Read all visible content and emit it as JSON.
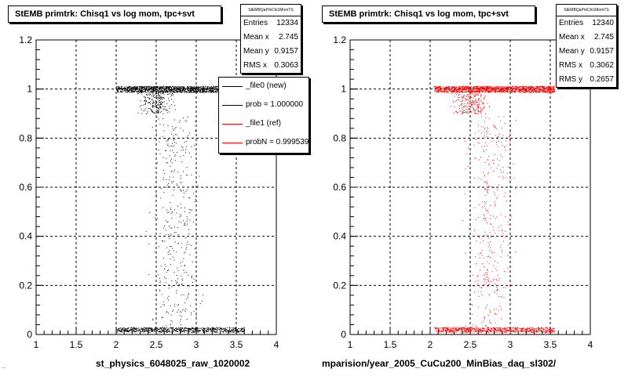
{
  "chart_data": [
    {
      "type": "scatter",
      "title": "StEMB primtrk: Chisq1 vs log mom, tpc+svt",
      "xlabel": "st_physics_6048025_raw_1020002",
      "ylabel": "",
      "xlim": [
        1,
        4
      ],
      "ylim": [
        0,
        1.2
      ],
      "x_ticks": [
        "1",
        "1.5",
        "2",
        "2.5",
        "3",
        "3.5",
        "4"
      ],
      "y_ticks": [
        "0",
        "0.2",
        "0.4",
        "0.6",
        "0.8",
        "1",
        "1.2"
      ],
      "grid": true,
      "marker_color": "#000000",
      "band_top": {
        "y": 1.0,
        "x_range": [
          2.0,
          3.6
        ]
      },
      "band_bottom": {
        "y": 0.01,
        "x_range": [
          2.0,
          3.6
        ]
      },
      "stats": {
        "header": "StEMBQaPrkChi1MomTS",
        "rows": [
          {
            "label": "Entries",
            "value": "12334"
          },
          {
            "label": "Mean x",
            "value": "2.745"
          },
          {
            "label": "Mean y",
            "value": "0.9157"
          },
          {
            "label": "RMS x",
            "value": "0.3063"
          }
        ]
      },
      "legend": {
        "position": "top-right",
        "entries": [
          {
            "label": "_file0 (new)",
            "color": "#000000"
          },
          {
            "label": "prob = 1.000000",
            "color": "#000000"
          },
          {
            "label": "_file1 (ref)",
            "color": "#ff0000"
          },
          {
            "label": "probN = 0.999539",
            "color": "#ff0000"
          }
        ]
      }
    },
    {
      "type": "scatter",
      "title": "StEMB primtrk: Chisq1 vs log mom, tpc+svt",
      "xlabel": "mparision/year_2005_CuCu200_MinBias_daq_sl302/",
      "ylabel": "",
      "xlim": [
        1,
        4
      ],
      "ylim": [
        0,
        1.2
      ],
      "x_ticks": [
        "1",
        "1.5",
        "2",
        "2.5",
        "3",
        "3.5",
        "4"
      ],
      "y_ticks": [
        "0",
        "0.2",
        "0.4",
        "0.6",
        "0.8",
        "1",
        "1.2"
      ],
      "grid": true,
      "marker_color": "#ff0000",
      "band_top": {
        "y": 1.0,
        "x_range": [
          2.05,
          3.55
        ]
      },
      "band_bottom": {
        "y": 0.01,
        "x_range": [
          2.05,
          3.55
        ]
      },
      "stats": {
        "header": "StEMBQaPrkChi1MomTS",
        "rows": [
          {
            "label": "Entries",
            "value": "12340"
          },
          {
            "label": "Mean x",
            "value": "2.745"
          },
          {
            "label": "Mean y",
            "value": "0.9157"
          },
          {
            "label": "RMS x",
            "value": "0.3062"
          },
          {
            "label": "RMS y",
            "value": "0.2657"
          }
        ]
      }
    }
  ],
  "footer_note": "..."
}
